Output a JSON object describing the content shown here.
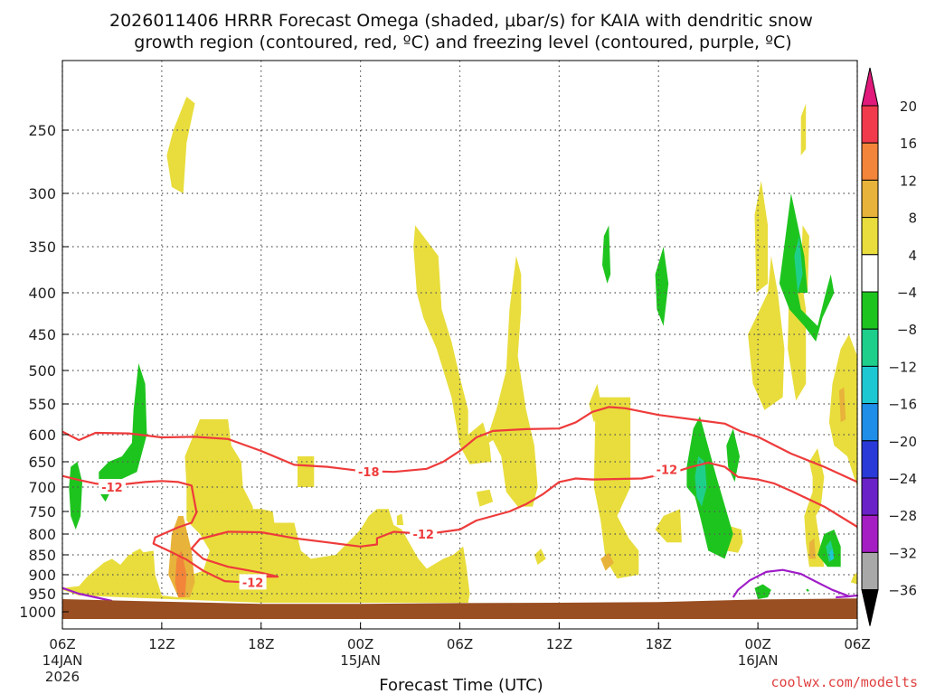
{
  "chart_data": {
    "type": "time-height cross-section",
    "title_line1": "2026011406 HRRR Forecast Omega (shaded, μbar/s) for KAIA with dendritic snow",
    "title_line2": "growth region (contoured, red, ºC) and freezing level (contoured, purple, ºC)",
    "xlabel": "Forecast Time (UTC)",
    "credit": "coolwx.com/modelts",
    "x_ticks": [
      {
        "h": 0,
        "label": "06Z",
        "date1": "14JAN",
        "date2": "2026"
      },
      {
        "h": 6,
        "label": "12Z"
      },
      {
        "h": 12,
        "label": "18Z"
      },
      {
        "h": 18,
        "label": "00Z",
        "date1": "15JAN"
      },
      {
        "h": 24,
        "label": "06Z"
      },
      {
        "h": 30,
        "label": "12Z"
      },
      {
        "h": 36,
        "label": "18Z"
      },
      {
        "h": 42,
        "label": "00Z",
        "date1": "16JAN"
      },
      {
        "h": 48,
        "label": "06Z"
      }
    ],
    "y_ticks": [
      250,
      300,
      350,
      400,
      450,
      500,
      550,
      600,
      650,
      700,
      750,
      800,
      850,
      900,
      950,
      1000
    ],
    "x_range_hours": [
      0,
      48
    ],
    "y_range_hpa": [
      200,
      1020
    ],
    "colorbar": {
      "labels": [
        "20",
        "16",
        "12",
        "8",
        "4",
        "−4",
        "−8",
        "−12",
        "−16",
        "−20",
        "−24",
        "−28",
        "−32",
        "−36"
      ],
      "colors": [
        "#f23a4d",
        "#f2853a",
        "#e8b33a",
        "#e8dd3c",
        "#ffffff",
        "#1ec41e",
        "#1ecf8c",
        "#1ec8d2",
        "#1e8ee8",
        "#2a3ad8",
        "#6a22c8",
        "#a51ec4",
        "#a8a8a8"
      ],
      "top_color": "#e0197a",
      "bottom_color": "#000000"
    },
    "contour_labels": [
      {
        "text": "-18",
        "h": 18.5,
        "p": 670
      },
      {
        "text": "-12",
        "h": 36.5,
        "p": 665
      },
      {
        "text": "-12",
        "h": 3.0,
        "p": 700
      },
      {
        "text": "-12",
        "h": 21.8,
        "p": 800
      },
      {
        "text": "-12",
        "h": 11.5,
        "p": 920
      }
    ],
    "colors": {
      "dgz_contour": "#ee3b3b",
      "freezing_contour": "#a01ec8",
      "terrain": "#9a4f22",
      "pos4": "#e8dd3c",
      "pos8": "#e8b33a",
      "pos12": "#f2853a",
      "neg4": "#1ec41e",
      "neg8": "#1ecf8c",
      "neg12": "#1ec8d2"
    }
  }
}
